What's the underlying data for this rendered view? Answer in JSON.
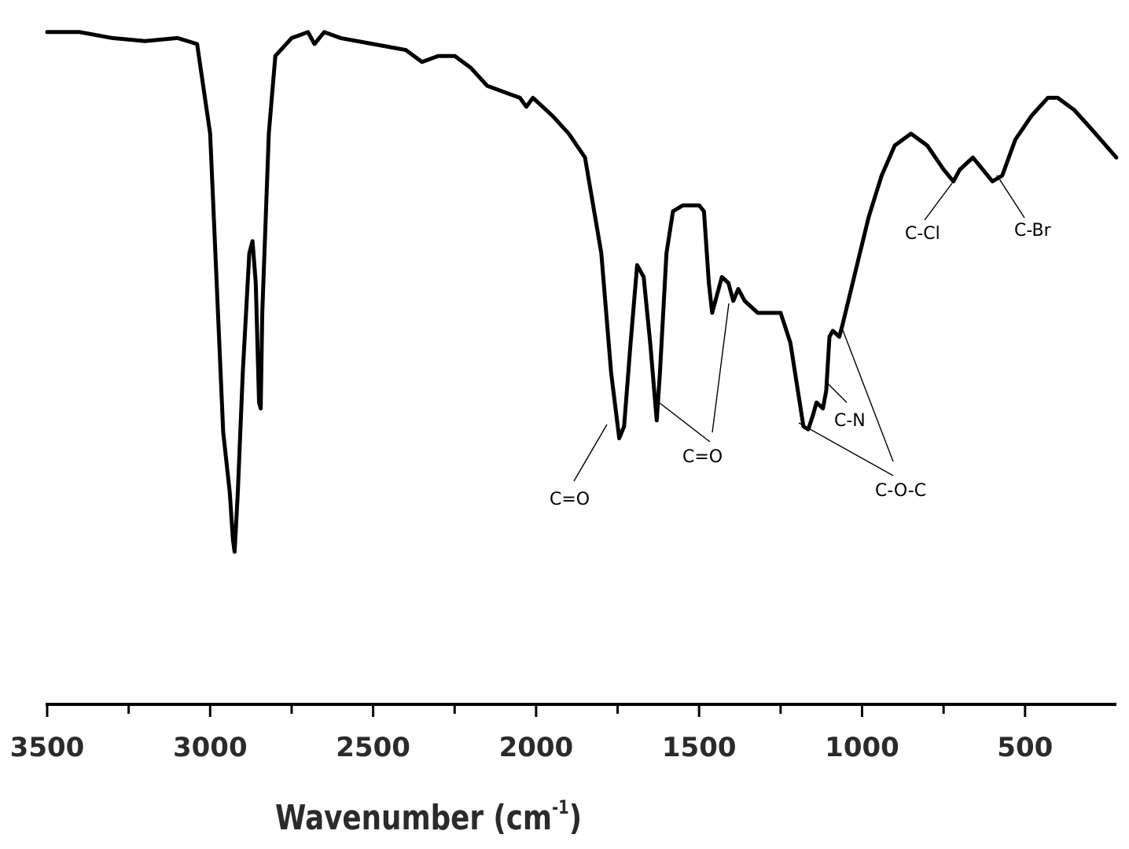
{
  "chart_data": {
    "type": "line",
    "title": "",
    "xlabel": "Wavenumber (cm",
    "xlabel_sup": "-1",
    "xlabel_close": ")",
    "ylabel": "",
    "xlim": [
      3500,
      220
    ],
    "x_reversed": true,
    "grid": false,
    "xticks": [
      {
        "value": 3500,
        "label": "3500",
        "major": true
      },
      {
        "value": 3250,
        "label": "",
        "major": false
      },
      {
        "value": 3000,
        "label": "3000",
        "major": true
      },
      {
        "value": 2750,
        "label": "",
        "major": false
      },
      {
        "value": 2500,
        "label": "2500",
        "major": true
      },
      {
        "value": 2250,
        "label": "",
        "major": false
      },
      {
        "value": 2000,
        "label": "2000",
        "major": true
      },
      {
        "value": 1750,
        "label": "",
        "major": false
      },
      {
        "value": 1500,
        "label": "1500",
        "major": true
      },
      {
        "value": 1250,
        "label": "",
        "major": false
      },
      {
        "value": 1000,
        "label": "1000",
        "major": true
      },
      {
        "value": 750,
        "label": "",
        "major": false
      },
      {
        "value": 500,
        "label": "500",
        "major": true
      }
    ],
    "series": [
      {
        "points": [
          [
            3500,
            97
          ],
          [
            3400,
            97
          ],
          [
            3300,
            96
          ],
          [
            3200,
            95.5
          ],
          [
            3100,
            96
          ],
          [
            3040,
            95
          ],
          [
            3000,
            80
          ],
          [
            2980,
            55
          ],
          [
            2960,
            30
          ],
          [
            2940,
            20
          ],
          [
            2930,
            12
          ],
          [
            2925,
            10
          ],
          [
            2915,
            20
          ],
          [
            2900,
            40
          ],
          [
            2880,
            60
          ],
          [
            2870,
            62
          ],
          [
            2860,
            55
          ],
          [
            2850,
            35
          ],
          [
            2845,
            34
          ],
          [
            2840,
            50
          ],
          [
            2820,
            80
          ],
          [
            2800,
            93
          ],
          [
            2750,
            96
          ],
          [
            2700,
            97
          ],
          [
            2680,
            95
          ],
          [
            2650,
            97
          ],
          [
            2600,
            96
          ],
          [
            2500,
            95
          ],
          [
            2400,
            94
          ],
          [
            2350,
            92
          ],
          [
            2300,
            93
          ],
          [
            2250,
            93
          ],
          [
            2200,
            91
          ],
          [
            2150,
            88
          ],
          [
            2100,
            87
          ],
          [
            2050,
            86
          ],
          [
            2030,
            84.5
          ],
          [
            2010,
            86
          ],
          [
            1950,
            83
          ],
          [
            1900,
            80
          ],
          [
            1850,
            76
          ],
          [
            1800,
            60
          ],
          [
            1770,
            40
          ],
          [
            1745,
            29
          ],
          [
            1730,
            31
          ],
          [
            1710,
            45
          ],
          [
            1690,
            58
          ],
          [
            1670,
            56
          ],
          [
            1650,
            45
          ],
          [
            1630,
            32
          ],
          [
            1620,
            40
          ],
          [
            1600,
            60
          ],
          [
            1580,
            67
          ],
          [
            1550,
            68
          ],
          [
            1500,
            68
          ],
          [
            1485,
            67
          ],
          [
            1470,
            55
          ],
          [
            1460,
            50
          ],
          [
            1450,
            52
          ],
          [
            1430,
            56
          ],
          [
            1410,
            55
          ],
          [
            1395,
            52
          ],
          [
            1380,
            54
          ],
          [
            1360,
            52
          ],
          [
            1340,
            51
          ],
          [
            1320,
            50
          ],
          [
            1300,
            50
          ],
          [
            1280,
            50
          ],
          [
            1250,
            50
          ],
          [
            1220,
            45
          ],
          [
            1200,
            38
          ],
          [
            1180,
            31
          ],
          [
            1165,
            30.5
          ],
          [
            1150,
            33
          ],
          [
            1140,
            35
          ],
          [
            1120,
            34
          ],
          [
            1110,
            37
          ],
          [
            1100,
            46
          ],
          [
            1090,
            47
          ],
          [
            1070,
            46
          ],
          [
            1060,
            48
          ],
          [
            1020,
            57
          ],
          [
            980,
            66
          ],
          [
            940,
            73
          ],
          [
            900,
            78
          ],
          [
            850,
            80
          ],
          [
            800,
            78
          ],
          [
            750,
            74
          ],
          [
            720,
            72
          ],
          [
            700,
            74
          ],
          [
            660,
            76
          ],
          [
            630,
            74
          ],
          [
            600,
            72
          ],
          [
            570,
            73
          ],
          [
            530,
            79
          ],
          [
            480,
            83
          ],
          [
            430,
            86
          ],
          [
            400,
            86
          ],
          [
            350,
            84
          ],
          [
            300,
            81
          ],
          [
            220,
            76
          ]
        ]
      }
    ],
    "annotations": [
      {
        "label": "C=O"
      },
      {
        "label": "C=O"
      },
      {
        "label": "C-N"
      },
      {
        "label": "C-O-C"
      },
      {
        "label": "C-Cl"
      },
      {
        "label": "C-Br"
      }
    ]
  }
}
